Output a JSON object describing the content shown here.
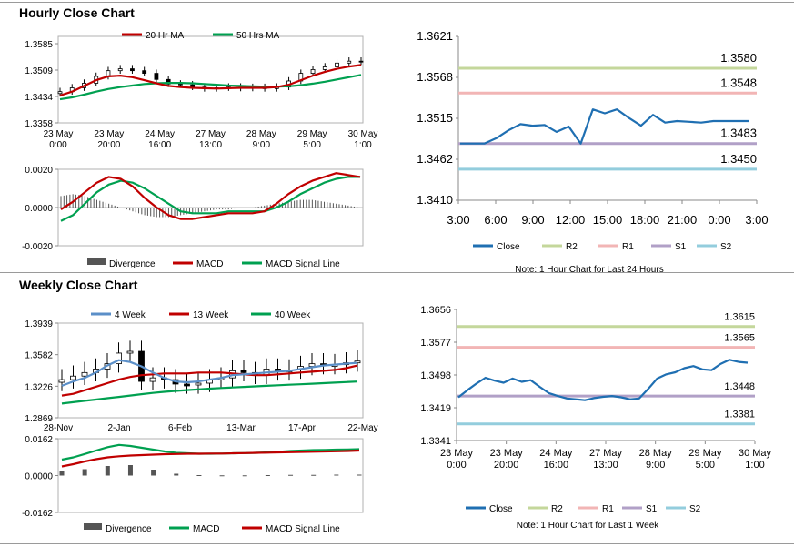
{
  "sections": {
    "hourly_title": "Hourly Close Chart",
    "weekly_title": "Weekly Close Chart"
  },
  "colors": {
    "ma_short": "#c00000",
    "ma_long": "#00a050",
    "close": "#1f6fb2",
    "r2": "#c4d79b",
    "r1": "#f2b5b5",
    "s1": "#b1a0c7",
    "s2": "#93cddd",
    "week4": "#5b8fc8",
    "divergence": "#555555"
  },
  "chart_data": [
    {
      "id": "hourly_price",
      "type": "candlestick",
      "legend": [
        "20 Hr MA",
        "50 Hrs MA"
      ],
      "y_ticks": [
        "1.3585",
        "1.3509",
        "1.3434",
        "1.3358"
      ],
      "ylim": [
        1.3358,
        1.3585
      ],
      "x_ticks": [
        [
          "23 May",
          "0:00"
        ],
        [
          "23 May",
          "20:00"
        ],
        [
          "24 May",
          "16:00"
        ],
        [
          "27 May",
          "13:00"
        ],
        [
          "28 May",
          "9:00"
        ],
        [
          "29 May",
          "5:00"
        ],
        [
          "30 May",
          "1:00"
        ]
      ],
      "series": [
        {
          "name": "close",
          "values": [
            1.344,
            1.345,
            1.3462,
            1.348,
            1.3495,
            1.35,
            1.3495,
            1.3488,
            1.3472,
            1.346,
            1.3458,
            1.3452,
            1.3448,
            1.345,
            1.3452,
            1.3449,
            1.3451,
            1.3448,
            1.3452,
            1.3468,
            1.3488,
            1.3498,
            1.3505,
            1.3515,
            1.352,
            1.3518
          ]
        },
        {
          "name": "20 Hr MA",
          "values": [
            1.343,
            1.344,
            1.3455,
            1.347,
            1.348,
            1.3482,
            1.3478,
            1.347,
            1.3462,
            1.3455,
            1.3452,
            1.345,
            1.3449,
            1.3448,
            1.3449,
            1.345,
            1.345,
            1.345,
            1.3452,
            1.3458,
            1.347,
            1.3482,
            1.3492,
            1.35,
            1.3506,
            1.351
          ]
        },
        {
          "name": "50 Hrs MA",
          "values": [
            1.342,
            1.3425,
            1.3432,
            1.344,
            1.3447,
            1.3452,
            1.3456,
            1.346,
            1.3462,
            1.3463,
            1.3463,
            1.3462,
            1.346,
            1.3458,
            1.3456,
            1.3455,
            1.3454,
            1.3453,
            1.3453,
            1.3454,
            1.3457,
            1.3461,
            1.3466,
            1.3472,
            1.3478,
            1.3484
          ]
        }
      ]
    },
    {
      "id": "hourly_macd",
      "type": "line+bar",
      "legend": [
        "Divergence",
        "MACD",
        "MACD Signal Line"
      ],
      "y_ticks": [
        "0.0020",
        "0.0000",
        "-0.0020"
      ],
      "ylim": [
        -0.002,
        0.002
      ],
      "series": [
        {
          "name": "Divergence",
          "values": [
            0.0006,
            0.0007,
            0.0006,
            0.0004,
            0.0002,
            0.0,
            -0.0002,
            -0.0004,
            -0.0005,
            -0.0005,
            -0.0004,
            -0.0003,
            -0.0002,
            -0.0001,
            -0.0001,
            0.0,
            0.0,
            0.0001,
            0.0002,
            0.0003,
            0.0004,
            0.0004,
            0.0003,
            0.0002,
            0.0001,
            0.0
          ]
        },
        {
          "name": "MACD",
          "values": [
            -0.0001,
            0.0003,
            0.0008,
            0.0013,
            0.0016,
            0.0015,
            0.0011,
            0.0005,
            0.0,
            -0.0004,
            -0.0006,
            -0.0006,
            -0.0005,
            -0.0004,
            -0.0003,
            -0.0003,
            -0.0003,
            -0.0002,
            0.0002,
            0.0007,
            0.0011,
            0.0014,
            0.0016,
            0.0018,
            0.0017,
            0.0016
          ]
        },
        {
          "name": "MACD Signal Line",
          "values": [
            -0.0007,
            -0.0004,
            0.0002,
            0.0008,
            0.0012,
            0.0014,
            0.0013,
            0.001,
            0.0006,
            0.0002,
            -0.0002,
            -0.0003,
            -0.0003,
            -0.0003,
            -0.0002,
            -0.0002,
            -0.0002,
            -0.0002,
            0.0,
            0.0003,
            0.0007,
            0.001,
            0.0013,
            0.0015,
            0.0016,
            0.0016
          ]
        }
      ]
    },
    {
      "id": "hourly_pivot",
      "type": "line",
      "y_ticks": [
        "1.3621",
        "1.3568",
        "1.3515",
        "1.3462",
        "1.3410"
      ],
      "ylim": [
        1.341,
        1.3621
      ],
      "x_ticks": [
        "3:00",
        "6:00",
        "9:00",
        "12:00",
        "15:00",
        "18:00",
        "21:00",
        "0:00",
        "3:00"
      ],
      "levels": [
        {
          "name": "R2",
          "value": 1.358,
          "label": "1.3580"
        },
        {
          "name": "R1",
          "value": 1.3548,
          "label": "1.3548"
        },
        {
          "name": "S1",
          "value": 1.3483,
          "label": "1.3483"
        },
        {
          "name": "S2",
          "value": 1.345,
          "label": "1.3450"
        }
      ],
      "close": [
        1.3483,
        1.3483,
        1.3483,
        1.349,
        1.35,
        1.3508,
        1.3506,
        1.3507,
        1.3498,
        1.3505,
        1.3483,
        1.3527,
        1.3522,
        1.3527,
        1.3516,
        1.3506,
        1.352,
        1.351,
        1.3512,
        1.3511,
        1.351,
        1.3512,
        1.3512,
        1.3512,
        1.3512
      ],
      "legend": [
        "Close",
        "R2",
        "R1",
        "S1",
        "S2"
      ],
      "note": "Note: 1 Hour Chart for Last 24 Hours"
    },
    {
      "id": "weekly_price",
      "type": "candlestick",
      "legend": [
        "4 Week",
        "13 Week",
        "40 Week"
      ],
      "y_ticks": [
        "1.3939",
        "1.3582",
        "1.3226",
        "1.2869"
      ],
      "ylim": [
        1.2869,
        1.3939
      ],
      "x_ticks": [
        "28-Nov",
        "2-Jan",
        "6-Feb",
        "13-Mar",
        "17-Apr",
        "22-May"
      ],
      "series": [
        {
          "name": "close",
          "values": [
            1.33,
            1.334,
            1.338,
            1.342,
            1.348,
            1.36,
            1.362,
            1.328,
            1.332,
            1.33,
            1.325,
            1.324,
            1.326,
            1.33,
            1.332,
            1.34,
            1.338,
            1.335,
            1.342,
            1.339,
            1.341,
            1.345,
            1.348,
            1.346,
            1.347,
            1.349,
            1.351
          ]
        },
        {
          "name": "4 Week",
          "values": [
            1.323,
            1.328,
            1.332,
            1.338,
            1.346,
            1.352,
            1.35,
            1.345,
            1.338,
            1.332,
            1.328,
            1.327,
            1.328,
            1.33,
            1.332,
            1.335,
            1.336,
            1.337,
            1.338,
            1.339,
            1.34,
            1.342,
            1.344,
            1.346,
            1.347,
            1.348,
            1.349
          ]
        },
        {
          "name": "13 Week",
          "values": [
            1.312,
            1.314,
            1.318,
            1.322,
            1.326,
            1.33,
            1.333,
            1.335,
            1.336,
            1.337,
            1.337,
            1.337,
            1.338,
            1.338,
            1.338,
            1.337,
            1.336,
            1.335,
            1.335,
            1.336,
            1.337,
            1.338,
            1.339,
            1.34,
            1.341,
            1.343,
            1.346
          ]
        },
        {
          "name": "40 Week",
          "values": [
            1.303,
            1.3045,
            1.306,
            1.3075,
            1.309,
            1.3105,
            1.312,
            1.3135,
            1.315,
            1.3162,
            1.3172,
            1.3182,
            1.319,
            1.3198,
            1.3205,
            1.3212,
            1.3218,
            1.3224,
            1.323,
            1.3236,
            1.3242,
            1.3248,
            1.3254,
            1.326,
            1.3266,
            1.3272,
            1.3278
          ]
        }
      ]
    },
    {
      "id": "weekly_macd",
      "type": "line+bar",
      "legend": [
        "Divergence",
        "MACD",
        "MACD Signal Line"
      ],
      "y_ticks": [
        "0.0162",
        "0.0000",
        "-0.0162"
      ],
      "ylim": [
        -0.0162,
        0.0162
      ],
      "series": [
        {
          "name": "Divergence",
          "values": [
            0.002,
            0.0024,
            0.0028,
            0.0034,
            0.0042,
            0.005,
            0.0046,
            0.0036,
            0.0026,
            0.0016,
            0.0008,
            0.0004,
            0.0002,
            0.0001,
            0.0001,
            0.0001,
            0.0001,
            0.0002,
            0.0002,
            0.0002,
            0.0003,
            0.0003,
            0.0003,
            0.0003,
            0.0004,
            0.0004,
            0.0004
          ]
        },
        {
          "name": "MACD",
          "values": [
            0.007,
            0.008,
            0.0095,
            0.011,
            0.0125,
            0.0135,
            0.013,
            0.0122,
            0.0114,
            0.0106,
            0.01,
            0.0098,
            0.0096,
            0.0096,
            0.0097,
            0.0098,
            0.0099,
            0.01,
            0.0102,
            0.0105,
            0.0108,
            0.011,
            0.0112,
            0.0113,
            0.0114,
            0.0115,
            0.0116
          ]
        },
        {
          "name": "MACD Signal Line",
          "values": [
            0.004,
            0.005,
            0.0062,
            0.0072,
            0.008,
            0.0085,
            0.0088,
            0.009,
            0.0092,
            0.0094,
            0.0095,
            0.0096,
            0.0096,
            0.0097,
            0.0097,
            0.0098,
            0.0099,
            0.01,
            0.0101,
            0.0102,
            0.0103,
            0.0104,
            0.0105,
            0.0106,
            0.0107,
            0.0108,
            0.011
          ]
        }
      ]
    },
    {
      "id": "weekly_pivot",
      "type": "line",
      "y_ticks": [
        "1.3656",
        "1.3577",
        "1.3498",
        "1.3419",
        "1.3341"
      ],
      "ylim": [
        1.3341,
        1.3656
      ],
      "x_ticks": [
        [
          "23 May",
          "0:00"
        ],
        [
          "23 May",
          "20:00"
        ],
        [
          "24 May",
          "16:00"
        ],
        [
          "27 May",
          "13:00"
        ],
        [
          "28 May",
          "9:00"
        ],
        [
          "29 May",
          "5:00"
        ],
        [
          "30 May",
          "1:00"
        ]
      ],
      "levels": [
        {
          "name": "R2",
          "value": 1.3615,
          "label": "1.3615"
        },
        {
          "name": "R1",
          "value": 1.3565,
          "label": "1.3565"
        },
        {
          "name": "S1",
          "value": 1.3448,
          "label": "1.3448"
        },
        {
          "name": "S2",
          "value": 1.3381,
          "label": "1.3381"
        }
      ],
      "close": [
        1.3445,
        1.3462,
        1.3478,
        1.3492,
        1.3485,
        1.348,
        1.349,
        1.3482,
        1.3486,
        1.347,
        1.3455,
        1.3448,
        1.3442,
        1.344,
        1.3438,
        1.3443,
        1.3446,
        1.3448,
        1.3445,
        1.344,
        1.3442,
        1.3465,
        1.349,
        1.35,
        1.3505,
        1.3515,
        1.352,
        1.3512,
        1.351,
        1.3525,
        1.3535,
        1.353,
        1.3528
      ],
      "legend": [
        "Close",
        "R2",
        "R1",
        "S1",
        "S2"
      ],
      "note": "Note: 1 Hour Chart for Last 1 Week"
    }
  ]
}
